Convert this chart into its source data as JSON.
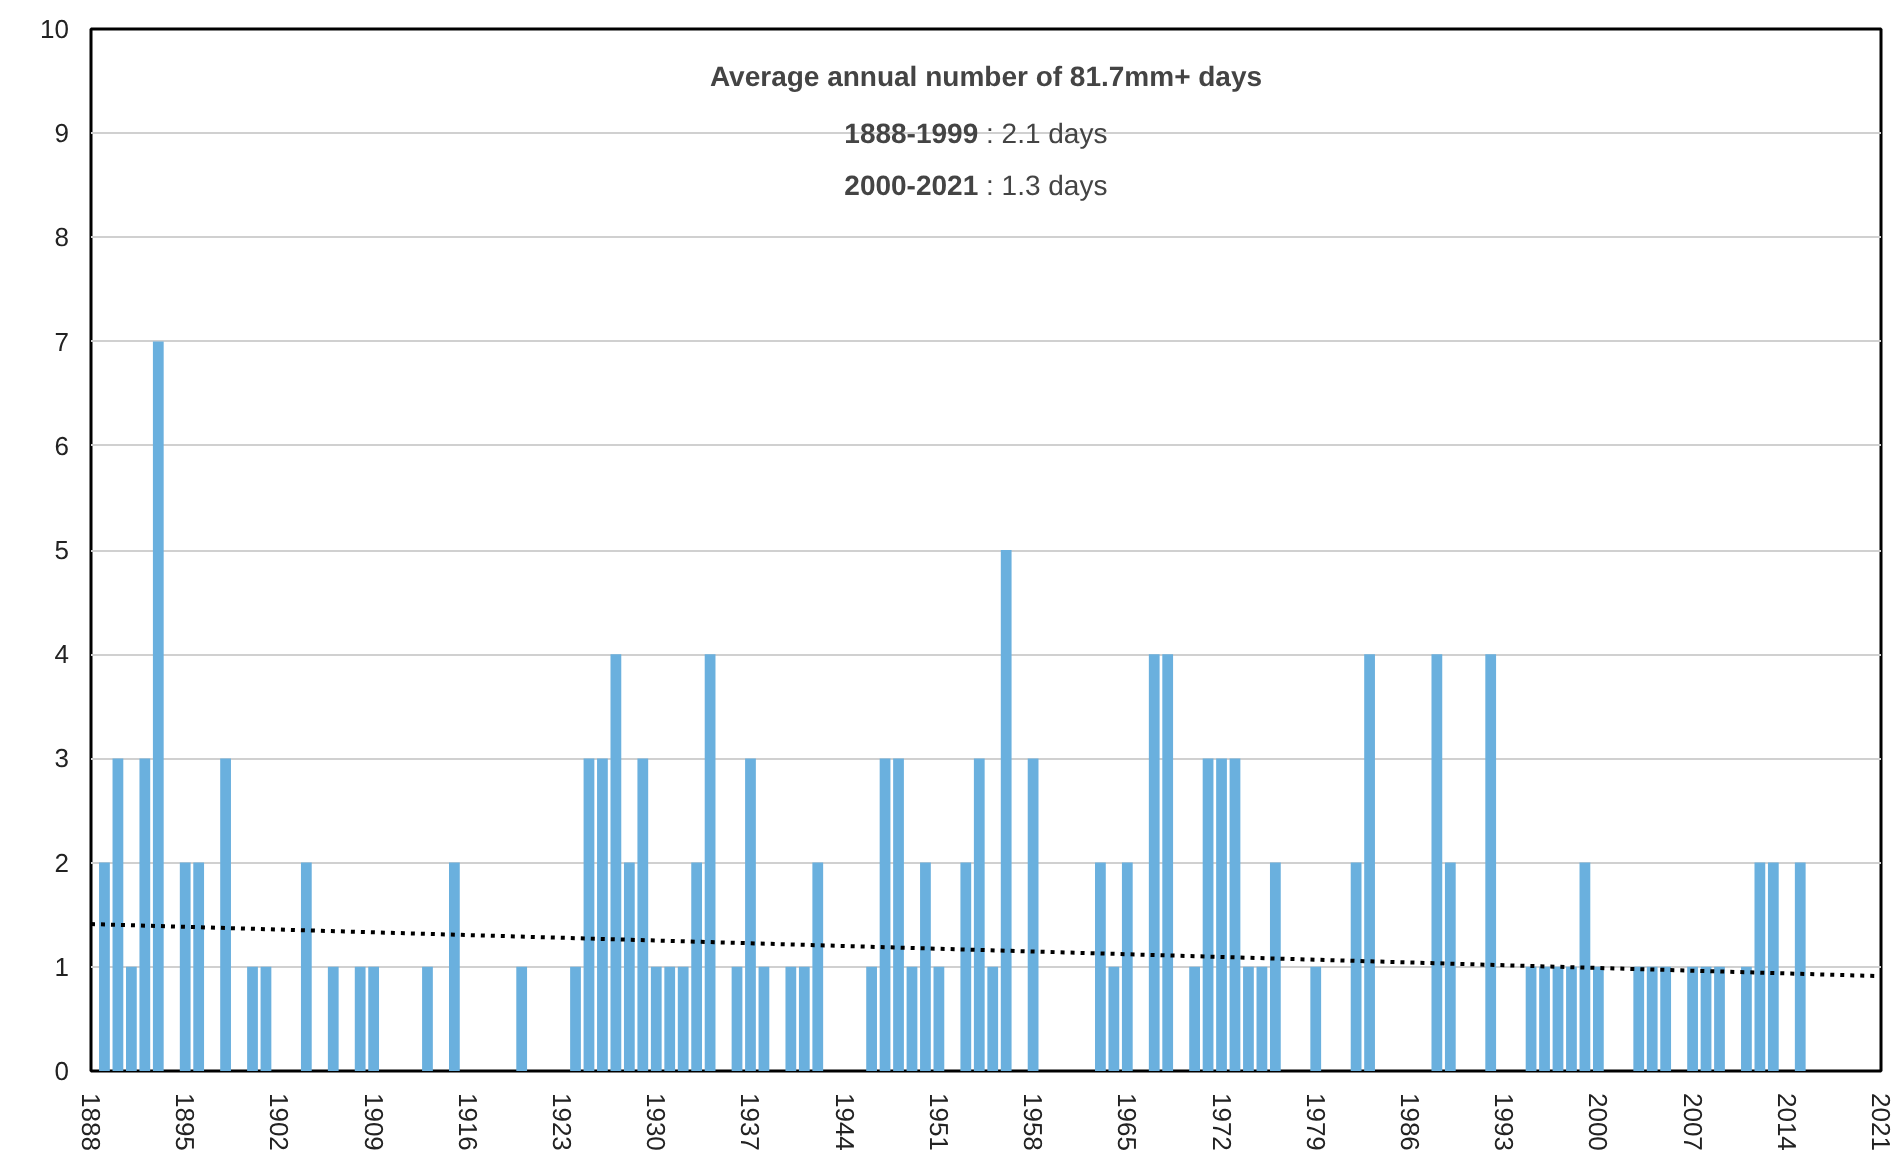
{
  "chart_data": {
    "type": "bar",
    "annotations": [
      "Average annual number of 81.7mm+ days",
      "1888-1999 : 2.1 days",
      "2000-2021 : 1.3 days"
    ],
    "xlim": [
      1888,
      2021
    ],
    "xticks": [
      1888,
      1895,
      1902,
      1909,
      1916,
      1923,
      1930,
      1937,
      1944,
      1951,
      1958,
      1965,
      1972,
      1979,
      1986,
      1993,
      2000,
      2007,
      2014,
      2021
    ],
    "ylim": [
      0,
      10
    ],
    "yticks": [
      0,
      1,
      2,
      3,
      4,
      5,
      6,
      7,
      8,
      9,
      10
    ],
    "grid": "y",
    "series": [
      {
        "color": "#6ab0de",
        "x": [
          1889,
          1890,
          1891,
          1892,
          1893,
          1895,
          1896,
          1898,
          1900,
          1901,
          1904,
          1906,
          1908,
          1909,
          1913,
          1915,
          1920,
          1924,
          1925,
          1926,
          1927,
          1928,
          1929,
          1930,
          1931,
          1932,
          1933,
          1934,
          1936,
          1937,
          1938,
          1940,
          1941,
          1942,
          1946,
          1947,
          1948,
          1949,
          1950,
          1951,
          1953,
          1954,
          1955,
          1956,
          1958,
          1963,
          1964,
          1965,
          1967,
          1968,
          1970,
          1971,
          1972,
          1973,
          1974,
          1975,
          1976,
          1979,
          1982,
          1983,
          1988,
          1989,
          1992,
          1995,
          1996,
          1997,
          1998,
          1999,
          2000,
          2003,
          2004,
          2005,
          2007,
          2008,
          2009,
          2011,
          2012,
          2013,
          2015
        ],
        "values": [
          2,
          3,
          1,
          3,
          7,
          2,
          2,
          3,
          1,
          1,
          2,
          1,
          1,
          1,
          1,
          2,
          1,
          1,
          3,
          3,
          4,
          2,
          3,
          1,
          1,
          1,
          2,
          4,
          1,
          3,
          1,
          1,
          1,
          2,
          1,
          3,
          3,
          1,
          2,
          1,
          2,
          3,
          1,
          5,
          3,
          2,
          1,
          2,
          4,
          4,
          1,
          3,
          3,
          3,
          1,
          1,
          2,
          1,
          2,
          4,
          4,
          2,
          4,
          1,
          1,
          1,
          1,
          2,
          1,
          1,
          1,
          1,
          1,
          1,
          1,
          1,
          2,
          2,
          2
        ]
      },
      {
        "type": "line",
        "color": "#000000",
        "line_style": "dotted",
        "x": [
          1888,
          2021
        ],
        "values": [
          1.41,
          0.91
        ]
      }
    ]
  }
}
